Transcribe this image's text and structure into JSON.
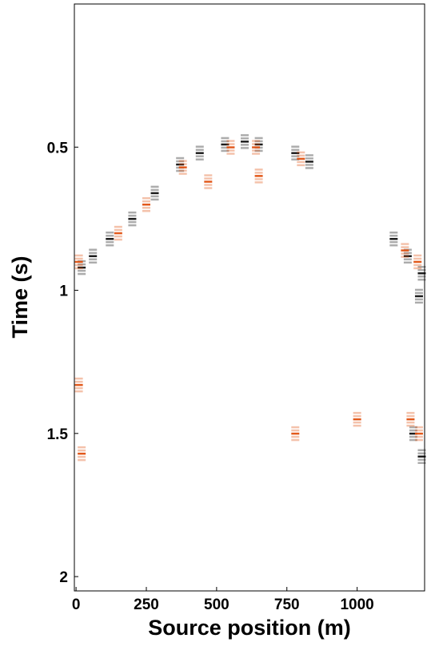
{
  "chart_data": {
    "type": "scatter",
    "xlabel": "Source position (m)",
    "ylabel": "Time (s)",
    "xlim": [
      -6,
      1240
    ],
    "ylim": [
      0,
      2.05
    ],
    "y_reversed": true,
    "xticks": [
      0,
      250,
      500,
      750,
      1000
    ],
    "yticks": [
      0.5,
      1,
      1.5,
      2
    ],
    "series": [
      {
        "color": "#111111",
        "x": [
          20,
          60,
          120,
          200,
          280,
          370,
          440,
          530,
          600,
          650,
          780,
          830,
          1130,
          1180,
          1230,
          1220,
          1200,
          1230
        ],
        "values": [
          0.92,
          0.88,
          0.82,
          0.75,
          0.66,
          0.56,
          0.52,
          0.49,
          0.48,
          0.49,
          0.52,
          0.55,
          0.82,
          0.88,
          0.94,
          1.02,
          1.5,
          1.58
        ]
      },
      {
        "color": "#e0500f",
        "x": [
          10,
          380,
          550,
          640,
          800,
          1170,
          1215,
          1220,
          1190,
          10,
          20,
          780,
          150,
          250,
          470,
          650,
          1000
        ],
        "values": [
          0.9,
          0.57,
          0.5,
          0.5,
          0.54,
          0.86,
          0.9,
          1.5,
          1.45,
          1.33,
          1.57,
          1.5,
          0.8,
          0.7,
          0.62,
          0.6,
          1.45
        ]
      }
    ]
  }
}
